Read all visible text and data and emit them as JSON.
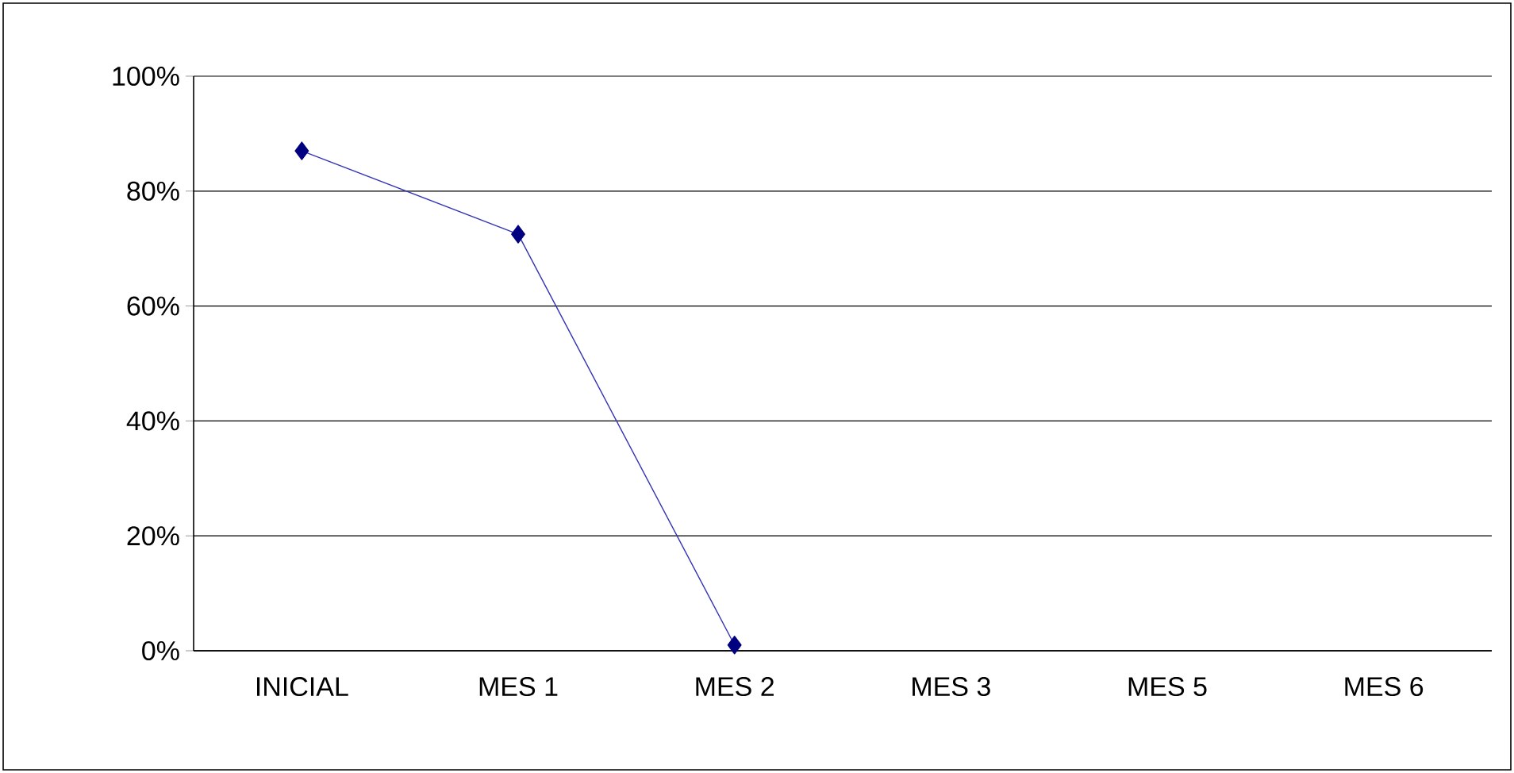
{
  "chart_data": {
    "type": "line",
    "categories": [
      "INICIAL",
      "MES 1",
      "MES 2",
      "MES 3",
      "MES 5",
      "MES 6"
    ],
    "series": [
      {
        "color": "#000080",
        "values": [
          87,
          72.5,
          1,
          null,
          null,
          null
        ]
      }
    ],
    "ylim": [
      0,
      100
    ],
    "yticks": [
      {
        "value": 0,
        "label": "0%"
      },
      {
        "value": 20,
        "label": "20%"
      },
      {
        "value": 40,
        "label": "40%"
      },
      {
        "value": 60,
        "label": "60%"
      },
      {
        "value": 80,
        "label": "80%"
      },
      {
        "value": 100,
        "label": "100%"
      }
    ],
    "grid": "y",
    "marker": "diamond",
    "line_style": "solid"
  }
}
